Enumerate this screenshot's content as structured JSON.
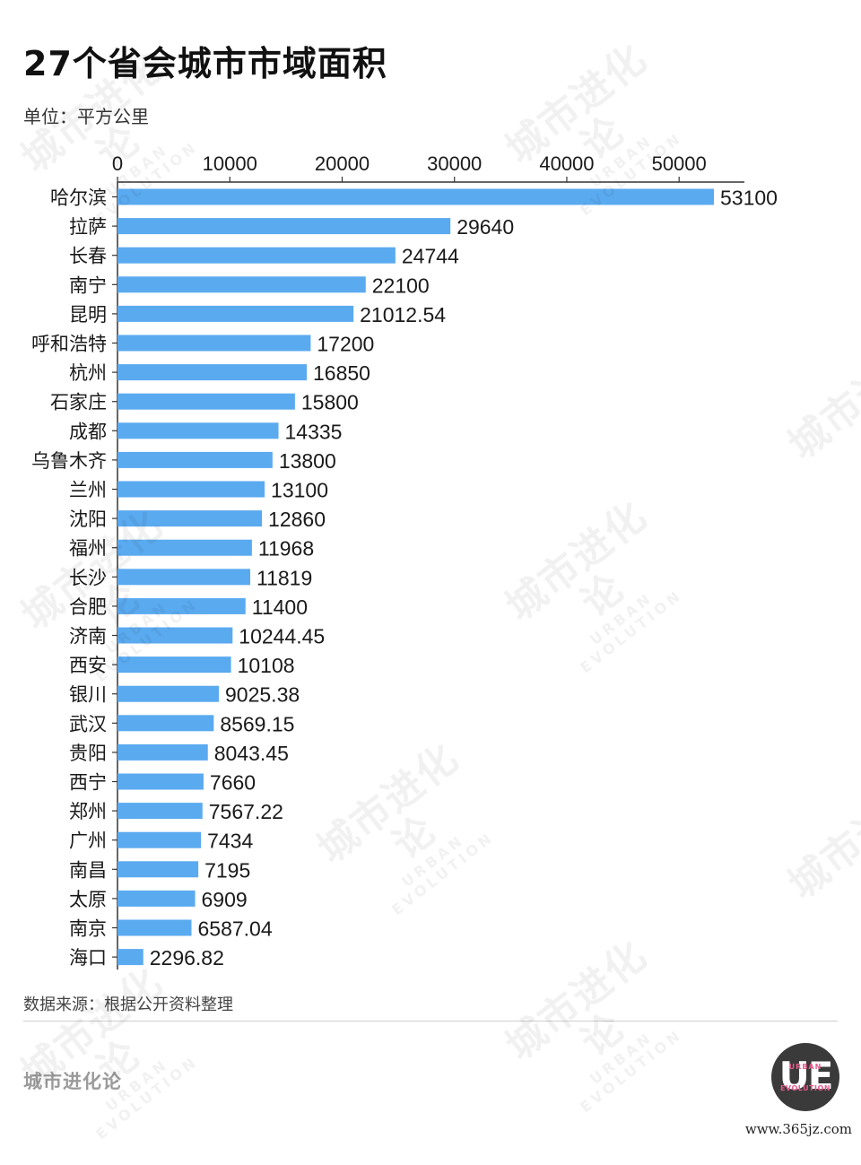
{
  "header": {
    "title": "27个省会城市市域面积",
    "unit": "单位：平方公里"
  },
  "footer": {
    "source": "数据来源：根据公开资料整理",
    "brand": "城市进化论",
    "logo_mark": "UE",
    "logo_top": "URBAN",
    "logo_bottom": "EVOLUTION",
    "site": "www.365jz.com"
  },
  "watermark": {
    "cn": "城市进化论",
    "en": "URBAN EVOLUTION"
  },
  "colors": {
    "bar": "#5aaaf0",
    "axis": "#333333",
    "text": "#1a1a1a"
  },
  "chart_data": {
    "type": "bar",
    "orientation": "horizontal",
    "xlim": [
      0,
      55000
    ],
    "ticks": [
      0,
      10000,
      20000,
      30000,
      40000,
      50000
    ],
    "tick_labels": [
      "0",
      "10000",
      "20000",
      "30000",
      "40000",
      "50000"
    ],
    "axis_position": "top",
    "grid": false,
    "categories": [
      "哈尔滨",
      "拉萨",
      "长春",
      "南宁",
      "昆明",
      "呼和浩特",
      "杭州",
      "石家庄",
      "成都",
      "乌鲁木齐",
      "兰州",
      "沈阳",
      "福州",
      "长沙",
      "合肥",
      "济南",
      "西安",
      "银川",
      "武汉",
      "贵阳",
      "西宁",
      "郑州",
      "广州",
      "南昌",
      "太原",
      "南京",
      "海口"
    ],
    "values": [
      53100,
      29640,
      24744,
      22100,
      21012.54,
      17200,
      16850,
      15800,
      14335,
      13800,
      13100,
      12860,
      11968,
      11819,
      11400,
      10244.45,
      10108,
      9025.38,
      8569.15,
      8043.45,
      7660,
      7567.22,
      7434,
      7195,
      6909,
      6587.04,
      2296.82
    ],
    "value_labels": [
      "53100",
      "29640",
      "24744",
      "22100",
      "21012.54",
      "17200",
      "16850",
      "15800",
      "14335",
      "13800",
      "13100",
      "12860",
      "11968",
      "11819",
      "11400",
      "10244.45",
      "10108",
      "9025.38",
      "8569.15",
      "8043.45",
      "7660",
      "7567.22",
      "7434",
      "7195",
      "6909",
      "6587.04",
      "2296.82"
    ]
  }
}
